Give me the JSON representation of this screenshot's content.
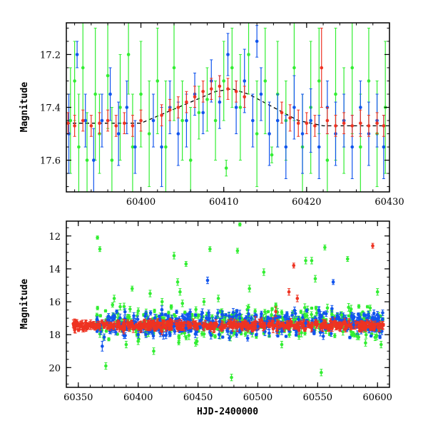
{
  "colors": {
    "green": "#33ee33",
    "blue": "#1155ee",
    "red": "#ee3322",
    "model": "#000000"
  },
  "chart_data": [
    {
      "type": "scatter",
      "title": "",
      "xlabel": "",
      "ylabel": "Magnitude",
      "xlim": [
        60391,
        60430
      ],
      "ylim": [
        17.72,
        17.08
      ],
      "y_inverted": true,
      "xticks": [
        60400,
        60410,
        60420,
        60430
      ],
      "yticks": [
        17.2,
        17.4,
        17.6
      ],
      "xtick_labels": [
        "60400",
        "60410",
        "60420",
        "60430"
      ],
      "ytick_labels": [
        "17.2",
        "17.4",
        "17.6"
      ],
      "model_curve": {
        "style": "dashed",
        "points": [
          [
            60391,
            17.46
          ],
          [
            60400,
            17.46
          ],
          [
            60403,
            17.42
          ],
          [
            60406,
            17.38
          ],
          [
            60409,
            17.34
          ],
          [
            60411,
            17.33
          ],
          [
            60413,
            17.35
          ],
          [
            60416,
            17.4
          ],
          [
            60419,
            17.45
          ],
          [
            60422,
            17.47
          ],
          [
            60430,
            17.47
          ]
        ]
      },
      "series": [
        {
          "color_key": "green",
          "points": [
            [
              60391.5,
              17.45,
              0.2
            ],
            [
              60392.0,
              17.3,
              0.15
            ],
            [
              60392.5,
              17.55,
              0.2
            ],
            [
              60393.0,
              17.25,
              0.2
            ],
            [
              60393.5,
              17.6,
              0.18
            ],
            [
              60394.5,
              17.35,
              0.25
            ],
            [
              60395.0,
              17.5,
              0.15
            ],
            [
              60396.0,
              17.28,
              0.2
            ],
            [
              60396.5,
              17.6,
              0.2
            ],
            [
              60397.5,
              17.4,
              0.2
            ],
            [
              60398.5,
              17.2,
              0.15
            ],
            [
              60399.0,
              17.55,
              0.2
            ],
            [
              60400.0,
              17.35,
              0.2
            ],
            [
              60401.0,
              17.5,
              0.2
            ],
            [
              60402.0,
              17.3,
              0.2
            ],
            [
              60403.0,
              17.55,
              0.25
            ],
            [
              60404.0,
              17.25,
              0.2
            ],
            [
              60405.0,
              17.45,
              0.15
            ],
            [
              60406.0,
              17.6,
              0.2
            ],
            [
              60407.0,
              17.42,
              0.1
            ],
            [
              60408.0,
              17.37,
              0.12
            ],
            [
              60409.0,
              17.45,
              0.15
            ],
            [
              60410.0,
              17.3,
              0.15
            ],
            [
              60410.3,
              17.63,
              0.03
            ],
            [
              60411.0,
              17.25,
              0.15
            ],
            [
              60412.0,
              17.4,
              0.2
            ],
            [
              60413.0,
              17.2,
              0.15
            ],
            [
              60414.0,
              17.5,
              0.2
            ],
            [
              60415.0,
              17.3,
              0.2
            ],
            [
              60415.8,
              17.58,
              0.03
            ],
            [
              60416.5,
              17.35,
              0.2
            ],
            [
              60417.5,
              17.45,
              0.15
            ],
            [
              60418.5,
              17.25,
              0.2
            ],
            [
              60419.5,
              17.55,
              0.2
            ],
            [
              60420.5,
              17.4,
              0.25
            ],
            [
              60421.5,
              17.3,
              0.2
            ],
            [
              60422.5,
              17.6,
              0.2
            ],
            [
              60423.5,
              17.35,
              0.25
            ],
            [
              60424.5,
              17.45,
              0.2
            ],
            [
              60425.5,
              17.25,
              0.25
            ],
            [
              60426.5,
              17.55,
              0.2
            ],
            [
              60427.5,
              17.3,
              0.2
            ],
            [
              60428.5,
              17.5,
              0.2
            ],
            [
              60429.5,
              17.4,
              0.25
            ]
          ]
        },
        {
          "color_key": "blue",
          "points": [
            [
              60391.3,
              17.5,
              0.15
            ],
            [
              60392.3,
              17.2,
              0.05
            ],
            [
              60393.3,
              17.45,
              0.1
            ],
            [
              60394.3,
              17.6,
              0.12
            ],
            [
              60395.3,
              17.45,
              0.1
            ],
            [
              60396.3,
              17.35,
              0.1
            ],
            [
              60397.3,
              17.5,
              0.12
            ],
            [
              60398.3,
              17.4,
              0.1
            ],
            [
              60399.3,
              17.55,
              0.1
            ],
            [
              60401.5,
              17.45,
              0.1
            ],
            [
              60402.5,
              17.55,
              0.15
            ],
            [
              60403.5,
              17.4,
              0.1
            ],
            [
              60404.5,
              17.5,
              0.12
            ],
            [
              60405.5,
              17.45,
              0.1
            ],
            [
              60406.5,
              17.35,
              0.08
            ],
            [
              60407.5,
              17.42,
              0.08
            ],
            [
              60408.5,
              17.3,
              0.08
            ],
            [
              60409.5,
              17.38,
              0.1
            ],
            [
              60410.5,
              17.2,
              0.08
            ],
            [
              60411.5,
              17.4,
              0.1
            ],
            [
              60412.5,
              17.3,
              0.12
            ],
            [
              60413.5,
              17.45,
              0.1
            ],
            [
              60414.0,
              17.15,
              0.06
            ],
            [
              60414.5,
              17.35,
              0.1
            ],
            [
              60415.5,
              17.5,
              0.12
            ],
            [
              60416.5,
              17.45,
              0.1
            ],
            [
              60417.5,
              17.55,
              0.12
            ],
            [
              60418.5,
              17.4,
              0.12
            ],
            [
              60419.5,
              17.5,
              0.15
            ],
            [
              60420.5,
              17.45,
              0.12
            ],
            [
              60421.5,
              17.55,
              0.12
            ],
            [
              60422.5,
              17.4,
              0.1
            ],
            [
              60423.5,
              17.5,
              0.12
            ],
            [
              60424.5,
              17.45,
              0.1
            ],
            [
              60425.5,
              17.55,
              0.12
            ],
            [
              60426.5,
              17.4,
              0.1
            ],
            [
              60427.5,
              17.5,
              0.12
            ],
            [
              60428.5,
              17.45,
              0.1
            ],
            [
              60429.3,
              17.55,
              0.12
            ]
          ]
        },
        {
          "color_key": "red",
          "points": [
            [
              60391.2,
              17.46,
              0.04
            ],
            [
              60392.0,
              17.47,
              0.04
            ],
            [
              60393.0,
              17.45,
              0.04
            ],
            [
              60394.0,
              17.47,
              0.04
            ],
            [
              60395.0,
              17.46,
              0.04
            ],
            [
              60396.0,
              17.45,
              0.04
            ],
            [
              60397.0,
              17.47,
              0.04
            ],
            [
              60398.0,
              17.46,
              0.04
            ],
            [
              60399.0,
              17.47,
              0.04
            ],
            [
              60400.0,
              17.45,
              0.04
            ],
            [
              60402.5,
              17.43,
              0.04
            ],
            [
              60403.5,
              17.41,
              0.04
            ],
            [
              60404.5,
              17.4,
              0.04
            ],
            [
              60405.5,
              17.38,
              0.04
            ],
            [
              60406.5,
              17.36,
              0.04
            ],
            [
              60407.5,
              17.34,
              0.04
            ],
            [
              60408.5,
              17.33,
              0.04
            ],
            [
              60409.5,
              17.32,
              0.04
            ],
            [
              60410.5,
              17.33,
              0.04
            ],
            [
              60411.5,
              17.34,
              0.04
            ],
            [
              60412.5,
              17.36,
              0.04
            ],
            [
              60417.0,
              17.42,
              0.04
            ],
            [
              60418.0,
              17.44,
              0.05
            ],
            [
              60419.0,
              17.46,
              0.05
            ],
            [
              60420.0,
              17.46,
              0.04
            ],
            [
              60421.0,
              17.47,
              0.04
            ],
            [
              60421.8,
              17.25,
              0.15
            ],
            [
              60422.5,
              17.45,
              0.05
            ],
            [
              60423.5,
              17.47,
              0.04
            ],
            [
              60424.5,
              17.46,
              0.04
            ],
            [
              60425.5,
              17.47,
              0.04
            ],
            [
              60426.5,
              17.46,
              0.05
            ],
            [
              60427.5,
              17.47,
              0.04
            ],
            [
              60428.5,
              17.46,
              0.04
            ],
            [
              60429.3,
              17.47,
              0.04
            ]
          ]
        }
      ]
    },
    {
      "type": "scatter",
      "title": "",
      "xlabel": "HJD-2400000",
      "ylabel": "Magnitude",
      "xlim": [
        60340,
        60610
      ],
      "ylim": [
        21.2,
        11.1
      ],
      "y_inverted": true,
      "xticks": [
        60350,
        60400,
        60450,
        60500,
        60550,
        60600
      ],
      "yticks": [
        12,
        14,
        16,
        18,
        20
      ],
      "xtick_labels": [
        "60350",
        "60400",
        "60450",
        "60500",
        "60550",
        "60600"
      ],
      "ytick_labels": [
        "12",
        "14",
        "16",
        "18",
        "20"
      ],
      "series": [
        {
          "color_key": "green",
          "points": [
            [
              60366,
              12.1,
              0.1
            ],
            [
              60368,
              12.8,
              0.15
            ],
            [
              60373,
              19.9,
              0.2
            ],
            [
              60380,
              15.8,
              0.2
            ],
            [
              60385,
              16.3,
              0.2
            ],
            [
              60390,
              18.6,
              0.2
            ],
            [
              60395,
              15.2,
              0.15
            ],
            [
              60400,
              18.4,
              0.2
            ],
            [
              60410,
              15.5,
              0.2
            ],
            [
              60413,
              19.0,
              0.2
            ],
            [
              60420,
              16.0,
              0.2
            ],
            [
              60430,
              13.2,
              0.2
            ],
            [
              60433,
              14.8,
              0.2
            ],
            [
              60435,
              15.4,
              0.2
            ],
            [
              60437,
              16.1,
              0.2
            ],
            [
              60440,
              13.7,
              0.15
            ],
            [
              60448,
              18.5,
              0.2
            ],
            [
              60455,
              16.0,
              0.2
            ],
            [
              60460,
              12.8,
              0.15
            ],
            [
              60467,
              15.8,
              0.2
            ],
            [
              60472,
              17.1,
              0.2
            ],
            [
              60478,
              20.6,
              0.2
            ],
            [
              60483,
              12.9,
              0.15
            ],
            [
              60485,
              11.3,
              0.1
            ],
            [
              60493,
              15.2,
              0.2
            ],
            [
              60505,
              14.2,
              0.2
            ],
            [
              60515,
              16.3,
              0.2
            ],
            [
              60520,
              18.6,
              0.2
            ],
            [
              60530,
              17.1,
              0.2
            ],
            [
              60540,
              13.5,
              0.2
            ],
            [
              60545,
              13.5,
              0.2
            ],
            [
              60548,
              14.6,
              0.2
            ],
            [
              60553,
              20.3,
              0.2
            ],
            [
              60556,
              12.7,
              0.15
            ],
            [
              60570,
              16.8,
              0.2
            ],
            [
              60575,
              13.4,
              0.15
            ],
            [
              60583,
              18.1,
              0.2
            ],
            [
              60590,
              18.5,
              0.2
            ],
            [
              60600,
              15.4,
              0.2
            ],
            [
              60603,
              18.6,
              0.2
            ]
          ]
        },
        {
          "color_key": "blue",
          "points": [
            [
              60370,
              18.7,
              0.3
            ],
            [
              60400,
              18.0,
              0.2
            ],
            [
              60430,
              17.5,
              0.2
            ],
            [
              60440,
              17.6,
              0.2
            ],
            [
              60458,
              14.7,
              0.2
            ],
            [
              60468,
              17.2,
              0.2
            ],
            [
              60475,
              17.8,
              0.2
            ],
            [
              60485,
              17.0,
              0.2
            ],
            [
              60500,
              17.5,
              0.2
            ],
            [
              60520,
              17.8,
              0.2
            ],
            [
              60540,
              17.3,
              0.2
            ],
            [
              60551,
              16.5,
              0.2
            ],
            [
              60563,
              14.8,
              0.15
            ],
            [
              60580,
              17.4,
              0.2
            ],
            [
              60597,
              16.7,
              0.2
            ]
          ]
        },
        {
          "color_key": "red",
          "points": [
            [
              60498,
              17.2,
              0.3
            ],
            [
              60515,
              16.6,
              0.3
            ],
            [
              60526,
              15.4,
              0.2
            ],
            [
              60530,
              13.8,
              0.15
            ],
            [
              60533,
              15.8,
              0.2
            ],
            [
              60596,
              12.6,
              0.15
            ]
          ]
        }
      ],
      "bands": [
        {
          "color_key": "green",
          "x_start": 60365,
          "x_end": 60605,
          "center": 17.3,
          "spread": 0.9
        },
        {
          "color_key": "blue",
          "x_start": 60365,
          "x_end": 60605,
          "center": 17.3,
          "spread": 0.7
        },
        {
          "color_key": "red",
          "x_start": 60345,
          "x_end": 60605,
          "center": 17.45,
          "spread": 0.25
        }
      ]
    }
  ]
}
